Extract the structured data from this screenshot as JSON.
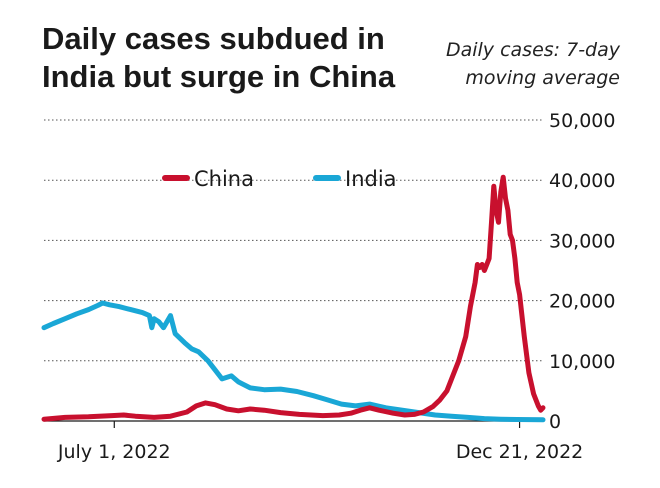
{
  "title": "Daily cases subdued in India but surge in China",
  "subtitle": "Daily cases: 7-day moving average",
  "colors": {
    "China": "#c8102e",
    "India": "#1aa7d6",
    "grid": "#555555",
    "text": "#1a1a1a"
  },
  "chart_data": {
    "type": "line",
    "title": "Daily cases subdued in India but surge in China",
    "subtitle": "Daily cases: 7-day moving average",
    "xlabel": "",
    "ylabel": "",
    "x_ticks": [
      {
        "label": "July 1, 2022",
        "x": "2022-07-01"
      },
      {
        "label": "Dec 21, 2022",
        "x": "2022-12-21"
      }
    ],
    "xlim": [
      "2022-06-01",
      "2022-12-31"
    ],
    "ylim": [
      0,
      50000
    ],
    "y_ticks": [
      {
        "value": 0,
        "label": "0"
      },
      {
        "value": 10000,
        "label": "10,000"
      },
      {
        "value": 20000,
        "label": "20,000"
      },
      {
        "value": 30000,
        "label": "30,000"
      },
      {
        "value": 40000,
        "label": "40,000"
      },
      {
        "value": 50000,
        "label": "50,000"
      }
    ],
    "grid": true,
    "legend": "top-center",
    "series": [
      {
        "name": "China",
        "color": "#c8102e",
        "points": [
          [
            "2022-06-01",
            300
          ],
          [
            "2022-06-10",
            600
          ],
          [
            "2022-06-20",
            700
          ],
          [
            "2022-06-30",
            900
          ],
          [
            "2022-07-05",
            1000
          ],
          [
            "2022-07-10",
            800
          ],
          [
            "2022-07-18",
            600
          ],
          [
            "2022-07-25",
            800
          ],
          [
            "2022-08-01",
            1500
          ],
          [
            "2022-08-05",
            2500
          ],
          [
            "2022-08-09",
            3000
          ],
          [
            "2022-08-13",
            2700
          ],
          [
            "2022-08-18",
            2000
          ],
          [
            "2022-08-23",
            1700
          ],
          [
            "2022-08-28",
            2000
          ],
          [
            "2022-09-03",
            1800
          ],
          [
            "2022-09-10",
            1400
          ],
          [
            "2022-09-18",
            1100
          ],
          [
            "2022-09-28",
            900
          ],
          [
            "2022-10-05",
            1000
          ],
          [
            "2022-10-10",
            1300
          ],
          [
            "2022-10-14",
            1800
          ],
          [
            "2022-10-18",
            2200
          ],
          [
            "2022-10-22",
            1800
          ],
          [
            "2022-10-28",
            1300
          ],
          [
            "2022-11-02",
            1000
          ],
          [
            "2022-11-06",
            1100
          ],
          [
            "2022-11-10",
            1500
          ],
          [
            "2022-11-14",
            2400
          ],
          [
            "2022-11-17",
            3500
          ],
          [
            "2022-11-20",
            5000
          ],
          [
            "2022-11-22",
            7000
          ],
          [
            "2022-11-25",
            10000
          ],
          [
            "2022-11-28",
            14000
          ],
          [
            "2022-11-30",
            19000
          ],
          [
            "2022-12-02",
            23000
          ],
          [
            "2022-12-03",
            26000
          ],
          [
            "2022-12-04",
            25500
          ],
          [
            "2022-12-05",
            26000
          ],
          [
            "2022-12-06",
            25000
          ],
          [
            "2022-12-07",
            26000
          ],
          [
            "2022-12-08",
            27000
          ],
          [
            "2022-12-09",
            33000
          ],
          [
            "2022-12-10",
            39000
          ],
          [
            "2022-12-11",
            35000
          ],
          [
            "2022-12-12",
            33000
          ],
          [
            "2022-12-13",
            38000
          ],
          [
            "2022-12-14",
            40500
          ],
          [
            "2022-12-15",
            37000
          ],
          [
            "2022-12-16",
            35000
          ],
          [
            "2022-12-17",
            31000
          ],
          [
            "2022-12-18",
            30000
          ],
          [
            "2022-12-19",
            27000
          ],
          [
            "2022-12-20",
            23000
          ],
          [
            "2022-12-21",
            21000
          ],
          [
            "2022-12-23",
            14000
          ],
          [
            "2022-12-25",
            8000
          ],
          [
            "2022-12-27",
            4500
          ],
          [
            "2022-12-29",
            2500
          ],
          [
            "2022-12-30",
            1800
          ],
          [
            "2022-12-31",
            2200
          ]
        ]
      },
      {
        "name": "India",
        "color": "#1aa7d6",
        "points": [
          [
            "2022-06-01",
            15500
          ],
          [
            "2022-06-05",
            16200
          ],
          [
            "2022-06-10",
            17000
          ],
          [
            "2022-06-15",
            17800
          ],
          [
            "2022-06-20",
            18500
          ],
          [
            "2022-06-24",
            19200
          ],
          [
            "2022-06-26",
            19600
          ],
          [
            "2022-06-29",
            19300
          ],
          [
            "2022-07-03",
            19000
          ],
          [
            "2022-07-08",
            18500
          ],
          [
            "2022-07-13",
            18000
          ],
          [
            "2022-07-16",
            17500
          ],
          [
            "2022-07-17",
            15500
          ],
          [
            "2022-07-18",
            17000
          ],
          [
            "2022-07-20",
            16500
          ],
          [
            "2022-07-22",
            15500
          ],
          [
            "2022-07-25",
            17500
          ],
          [
            "2022-07-27",
            14500
          ],
          [
            "2022-07-31",
            13000
          ],
          [
            "2022-08-03",
            12000
          ],
          [
            "2022-08-06",
            11500
          ],
          [
            "2022-08-10",
            10000
          ],
          [
            "2022-08-13",
            8500
          ],
          [
            "2022-08-16",
            7000
          ],
          [
            "2022-08-20",
            7500
          ],
          [
            "2022-08-23",
            6500
          ],
          [
            "2022-08-28",
            5500
          ],
          [
            "2022-09-03",
            5200
          ],
          [
            "2022-09-10",
            5300
          ],
          [
            "2022-09-17",
            4900
          ],
          [
            "2022-09-24",
            4200
          ],
          [
            "2022-09-30",
            3500
          ],
          [
            "2022-10-06",
            2800
          ],
          [
            "2022-10-12",
            2500
          ],
          [
            "2022-10-18",
            2800
          ],
          [
            "2022-10-25",
            2200
          ],
          [
            "2022-11-01",
            1800
          ],
          [
            "2022-11-08",
            1400
          ],
          [
            "2022-11-15",
            1000
          ],
          [
            "2022-11-22",
            800
          ],
          [
            "2022-11-29",
            600
          ],
          [
            "2022-12-06",
            400
          ],
          [
            "2022-12-13",
            300
          ],
          [
            "2022-12-20",
            250
          ],
          [
            "2022-12-31",
            200
          ]
        ]
      }
    ]
  }
}
